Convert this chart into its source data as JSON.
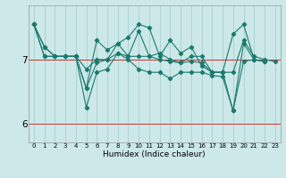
{
  "xlabel": "Humidex (Indice chaleur)",
  "ylabel": "",
  "bg_color": "#cce8e8",
  "line_color": "#1a7a6e",
  "grid_color": "#aacfcf",
  "x_values": [
    0,
    1,
    2,
    3,
    4,
    5,
    6,
    7,
    8,
    9,
    10,
    11,
    12,
    13,
    14,
    15,
    16,
    17,
    18,
    19,
    20,
    21,
    22,
    23
  ],
  "series": [
    [
      7.55,
      7.2,
      7.05,
      7.05,
      7.05,
      6.55,
      6.95,
      7.0,
      7.25,
      7.05,
      7.45,
      7.05,
      7.1,
      7.0,
      6.95,
      7.05,
      7.05,
      6.8,
      6.8,
      6.8,
      7.3,
      7.05,
      7.0,
      6.97
    ],
    [
      7.55,
      7.2,
      7.05,
      7.05,
      7.05,
      6.55,
      7.3,
      7.15,
      7.25,
      7.35,
      7.55,
      7.5,
      7.05,
      7.3,
      7.1,
      7.2,
      6.9,
      6.8,
      6.8,
      7.4,
      7.55,
      7.0,
      6.97,
      null
    ],
    [
      7.55,
      7.05,
      7.05,
      7.05,
      7.05,
      6.85,
      7.0,
      7.0,
      7.1,
      7.05,
      7.05,
      7.05,
      7.0,
      6.97,
      6.95,
      6.97,
      6.95,
      6.8,
      6.8,
      6.2,
      6.97,
      7.0,
      6.97,
      null
    ],
    [
      7.55,
      7.05,
      7.05,
      7.05,
      7.05,
      6.25,
      6.8,
      6.85,
      7.1,
      7.0,
      6.85,
      6.8,
      6.8,
      6.7,
      6.8,
      6.8,
      6.8,
      6.75,
      6.73,
      6.2,
      7.25,
      7.0,
      6.97,
      null
    ]
  ],
  "ylim": [
    5.7,
    7.85
  ],
  "yticks": [
    6,
    7
  ],
  "xlim": [
    -0.5,
    23.5
  ],
  "red_lines": [
    6,
    7
  ],
  "xtick_labels": [
    "0",
    "1",
    "2",
    "3",
    "4",
    "5",
    "6",
    "7",
    "8",
    "9",
    "10",
    "11",
    "12",
    "13",
    "14",
    "15",
    "16",
    "17",
    "18",
    "19",
    "20",
    "21",
    "22",
    "23"
  ]
}
